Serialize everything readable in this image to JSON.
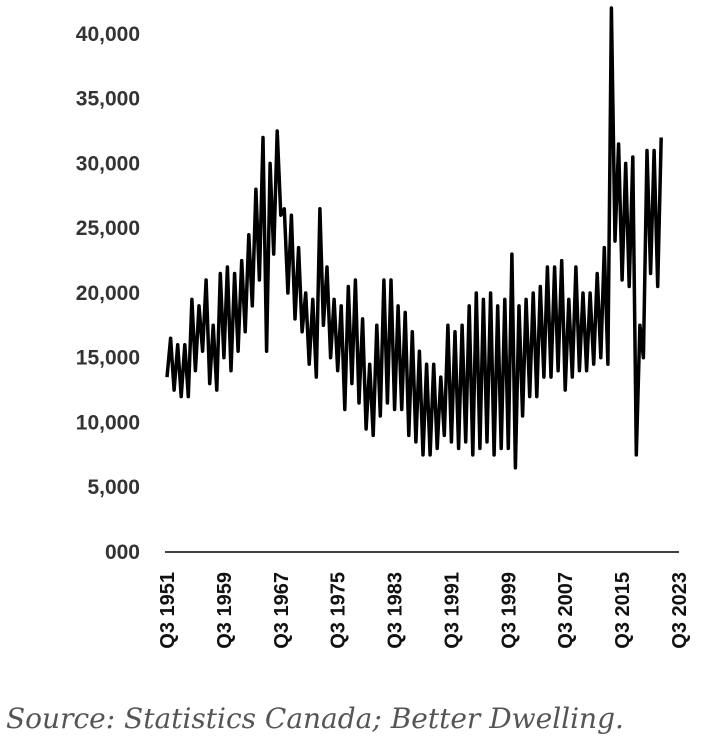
{
  "chart_data": {
    "type": "line",
    "title": "",
    "xlabel": "",
    "ylabel": "",
    "x_start": "Q3 1951",
    "x_end": "Q3 2023",
    "ylim": [
      0,
      42000
    ],
    "y_ticks": [
      "000",
      "5,000",
      "10,000",
      "15,000",
      "20,000",
      "25,000",
      "30,000",
      "35,000",
      "40,000"
    ],
    "y_tick_values": [
      0,
      5000,
      10000,
      15000,
      20000,
      25000,
      30000,
      35000,
      40000
    ],
    "x_ticks": [
      "Q3 1951",
      "Q3 1959",
      "Q3 1967",
      "Q3 1975",
      "Q3 1983",
      "Q3 1991",
      "Q3 1999",
      "Q3 2007",
      "Q3 2015",
      "Q3 2023"
    ],
    "x_tick_years": [
      1951.5,
      1959.5,
      1967.5,
      1975.5,
      1983.5,
      1991.5,
      1999.5,
      2007.5,
      2015.5,
      2023.5
    ],
    "grid": false,
    "legend": "none",
    "line_color": "#000000",
    "series": [
      {
        "values": [
          [
            1951.5,
            13500
          ],
          [
            1952.0,
            16500
          ],
          [
            1952.5,
            12500
          ],
          [
            1953.0,
            16000
          ],
          [
            1953.5,
            12000
          ],
          [
            1954.0,
            16000
          ],
          [
            1954.5,
            12000
          ],
          [
            1955.0,
            19500
          ],
          [
            1955.5,
            14000
          ],
          [
            1956.0,
            19000
          ],
          [
            1956.5,
            15500
          ],
          [
            1957.0,
            21000
          ],
          [
            1957.5,
            13000
          ],
          [
            1958.0,
            17500
          ],
          [
            1958.5,
            12500
          ],
          [
            1959.0,
            21500
          ],
          [
            1959.5,
            15000
          ],
          [
            1960.0,
            22000
          ],
          [
            1960.5,
            14000
          ],
          [
            1961.0,
            21500
          ],
          [
            1961.5,
            15500
          ],
          [
            1962.0,
            22500
          ],
          [
            1962.5,
            17000
          ],
          [
            1963.0,
            24500
          ],
          [
            1963.5,
            19000
          ],
          [
            1964.0,
            28000
          ],
          [
            1964.5,
            21000
          ],
          [
            1965.0,
            32000
          ],
          [
            1965.5,
            15500
          ],
          [
            1966.0,
            30000
          ],
          [
            1966.5,
            23000
          ],
          [
            1967.0,
            32500
          ],
          [
            1967.5,
            26000
          ],
          [
            1968.0,
            26500
          ],
          [
            1968.5,
            20000
          ],
          [
            1969.0,
            26000
          ],
          [
            1969.5,
            18000
          ],
          [
            1970.0,
            23500
          ],
          [
            1970.5,
            17000
          ],
          [
            1971.0,
            20000
          ],
          [
            1971.5,
            14500
          ],
          [
            1972.0,
            19500
          ],
          [
            1972.5,
            13500
          ],
          [
            1973.0,
            26500
          ],
          [
            1973.5,
            17500
          ],
          [
            1974.0,
            22000
          ],
          [
            1974.5,
            15000
          ],
          [
            1975.0,
            19500
          ],
          [
            1975.5,
            14000
          ],
          [
            1976.0,
            19000
          ],
          [
            1976.5,
            11000
          ],
          [
            1977.0,
            20500
          ],
          [
            1977.5,
            13000
          ],
          [
            1978.0,
            21000
          ],
          [
            1978.5,
            11500
          ],
          [
            1979.0,
            18000
          ],
          [
            1979.5,
            9500
          ],
          [
            1980.0,
            14500
          ],
          [
            1980.5,
            9000
          ],
          [
            1981.0,
            17500
          ],
          [
            1981.5,
            10500
          ],
          [
            1982.0,
            21000
          ],
          [
            1982.5,
            11500
          ],
          [
            1983.0,
            21000
          ],
          [
            1983.5,
            11000
          ],
          [
            1984.0,
            19000
          ],
          [
            1984.5,
            11000
          ],
          [
            1985.0,
            18500
          ],
          [
            1985.5,
            9000
          ],
          [
            1986.0,
            17000
          ],
          [
            1986.5,
            8500
          ],
          [
            1987.0,
            15500
          ],
          [
            1987.5,
            7500
          ],
          [
            1988.0,
            14500
          ],
          [
            1988.5,
            7500
          ],
          [
            1989.0,
            14500
          ],
          [
            1989.5,
            8000
          ],
          [
            1990.0,
            13500
          ],
          [
            1990.5,
            9000
          ],
          [
            1991.0,
            17500
          ],
          [
            1991.5,
            8500
          ],
          [
            1992.0,
            17000
          ],
          [
            1992.5,
            8000
          ],
          [
            1993.0,
            17500
          ],
          [
            1993.5,
            8500
          ],
          [
            1994.0,
            19000
          ],
          [
            1994.5,
            7500
          ],
          [
            1995.0,
            20000
          ],
          [
            1995.5,
            8000
          ],
          [
            1996.0,
            19500
          ],
          [
            1996.5,
            8500
          ],
          [
            1997.0,
            20000
          ],
          [
            1997.5,
            7500
          ],
          [
            1998.0,
            19000
          ],
          [
            1998.5,
            8000
          ],
          [
            1999.0,
            19500
          ],
          [
            1999.5,
            8000
          ],
          [
            2000.0,
            23000
          ],
          [
            2000.5,
            6500
          ],
          [
            2001.0,
            19000
          ],
          [
            2001.5,
            10500
          ],
          [
            2002.0,
            19500
          ],
          [
            2002.5,
            12000
          ],
          [
            2003.0,
            20000
          ],
          [
            2003.5,
            12000
          ],
          [
            2004.0,
            20500
          ],
          [
            2004.5,
            13500
          ],
          [
            2005.0,
            22000
          ],
          [
            2005.5,
            13500
          ],
          [
            2006.0,
            22000
          ],
          [
            2006.5,
            14000
          ],
          [
            2007.0,
            22500
          ],
          [
            2007.5,
            12500
          ],
          [
            2008.0,
            19500
          ],
          [
            2008.5,
            13500
          ],
          [
            2009.0,
            22000
          ],
          [
            2009.5,
            14000
          ],
          [
            2010.0,
            20000
          ],
          [
            2010.5,
            14000
          ],
          [
            2011.0,
            20000
          ],
          [
            2011.5,
            14500
          ],
          [
            2012.0,
            21500
          ],
          [
            2012.5,
            15000
          ],
          [
            2013.0,
            23500
          ],
          [
            2013.5,
            14500
          ],
          [
            2014.0,
            42000
          ],
          [
            2014.5,
            24000
          ],
          [
            2015.0,
            31500
          ],
          [
            2015.5,
            21000
          ],
          [
            2016.0,
            30000
          ],
          [
            2016.5,
            20500
          ],
          [
            2017.0,
            30500
          ],
          [
            2017.5,
            7500
          ],
          [
            2018.0,
            17500
          ],
          [
            2018.5,
            15000
          ],
          [
            2019.0,
            31000
          ],
          [
            2019.5,
            21500
          ],
          [
            2020.0,
            31000
          ],
          [
            2020.5,
            20500
          ],
          [
            2021.0,
            32000
          ]
        ]
      }
    ]
  },
  "source_text": "Source: Statistics Canada; Better Dwelling."
}
